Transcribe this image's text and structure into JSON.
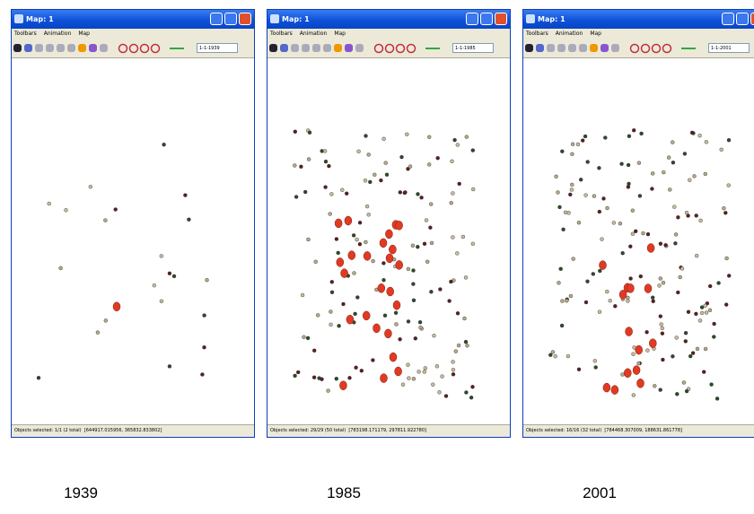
{
  "windows": [
    {
      "title": "Map: 1",
      "menu": [
        "Toolbars",
        "Animation",
        "Map"
      ],
      "date": "1-1-1939",
      "status": "Objects selected: 1/1 (2 total)",
      "coords": "[644917.015956, 365832.833802]",
      "caption": "1939"
    },
    {
      "title": "Map: 1",
      "menu": [
        "Toolbars",
        "Animation",
        "Map"
      ],
      "date": "1-1-1985",
      "status": "Objects selected: 29/29 (50 total)",
      "coords": "[783198.171179, 297811.922780]",
      "caption": "1985"
    },
    {
      "title": "Map: 1",
      "menu": [
        "Toolbars",
        "Animation",
        "Map"
      ],
      "date": "1-1-2001",
      "status": "Objects selected: 16/16 (32 total)",
      "coords": "[784468.307009, 188631.861778]",
      "caption": "2001"
    }
  ]
}
